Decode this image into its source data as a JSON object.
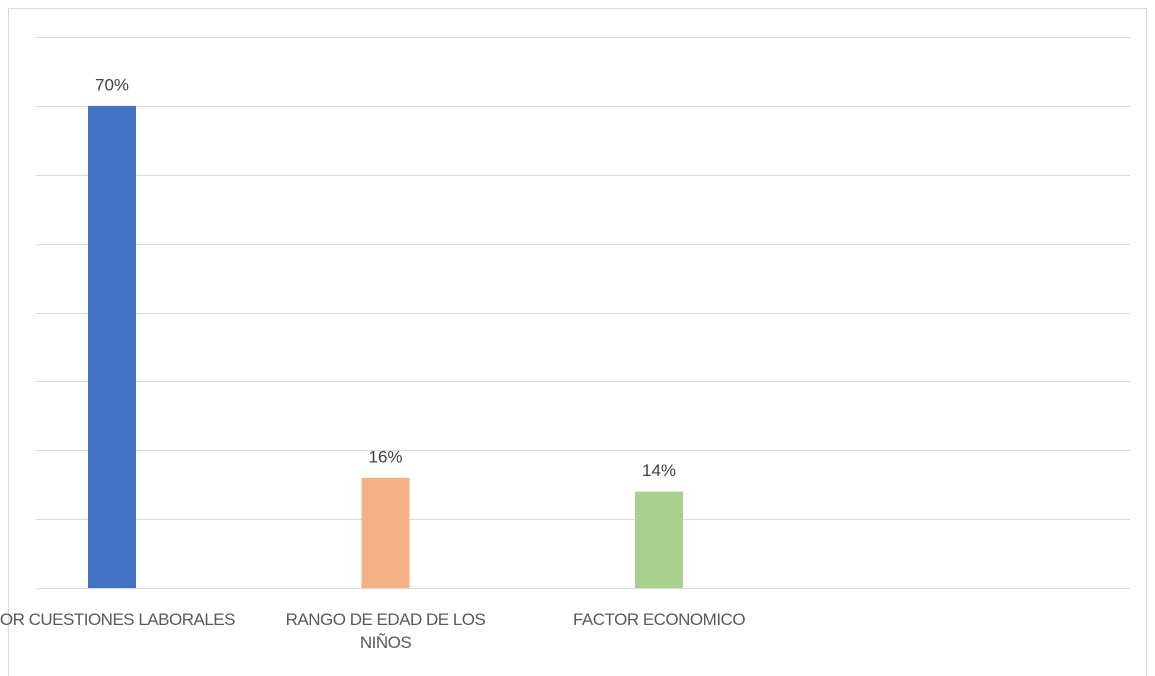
{
  "chart_data": {
    "type": "bar",
    "categories": [
      "POR CUESTIONES LABORALES",
      "RANGO DE EDAD DE LOS NIÑOS",
      "FACTOR ECONOMICO"
    ],
    "values": [
      70,
      16,
      14
    ],
    "value_labels": [
      "70%",
      "16%",
      "14%"
    ],
    "colors": [
      "#4472c4",
      "#f4b183",
      "#a9d18e"
    ],
    "ylim": [
      0,
      80
    ],
    "yticks": [
      0,
      10,
      20,
      30,
      40,
      50,
      60,
      70,
      80
    ],
    "grid": true
  }
}
